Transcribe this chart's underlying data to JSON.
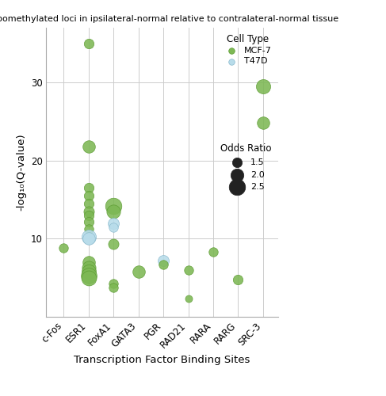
{
  "title": "Hypomethylated loci in ipsilateral-normal relative to contralateral-normal tissue",
  "xlabel": "Transcription Factor Binding Sites",
  "ylabel": "-log₁₀(Q-value)",
  "categories": [
    "c-Fos",
    "ESR1",
    "FoxA1",
    "GATA3",
    "PGR",
    "RAD21",
    "RARA",
    "RARG",
    "SRC-3"
  ],
  "mcf7_color": "#7db854",
  "mcf7_edge": "#5a9a30",
  "t47d_color": "#b8dcea",
  "t47d_edge": "#88b8cc",
  "points": [
    {
      "tf": "c-Fos",
      "cell": "MCF-7",
      "neg_log_q": 8.8,
      "odds_ratio": 1.4
    },
    {
      "tf": "ESR1",
      "cell": "MCF-7",
      "neg_log_q": 35.0,
      "odds_ratio": 1.5
    },
    {
      "tf": "ESR1",
      "cell": "MCF-7",
      "neg_log_q": 21.8,
      "odds_ratio": 1.9
    },
    {
      "tf": "ESR1",
      "cell": "MCF-7",
      "neg_log_q": 16.5,
      "odds_ratio": 1.5
    },
    {
      "tf": "ESR1",
      "cell": "MCF-7",
      "neg_log_q": 15.5,
      "odds_ratio": 1.5
    },
    {
      "tf": "ESR1",
      "cell": "MCF-7",
      "neg_log_q": 14.5,
      "odds_ratio": 1.5
    },
    {
      "tf": "ESR1",
      "cell": "MCF-7",
      "neg_log_q": 13.5,
      "odds_ratio": 1.6
    },
    {
      "tf": "ESR1",
      "cell": "MCF-7",
      "neg_log_q": 13.0,
      "odds_ratio": 1.5
    },
    {
      "tf": "ESR1",
      "cell": "MCF-7",
      "neg_log_q": 12.2,
      "odds_ratio": 1.5
    },
    {
      "tf": "ESR1",
      "cell": "MCF-7",
      "neg_log_q": 11.3,
      "odds_ratio": 1.4
    },
    {
      "tf": "ESR1",
      "cell": "T47D",
      "neg_log_q": 10.2,
      "odds_ratio": 2.2
    },
    {
      "tf": "ESR1",
      "cell": "T47D",
      "neg_log_q": 10.0,
      "odds_ratio": 1.9
    },
    {
      "tf": "ESR1",
      "cell": "MCF-7",
      "neg_log_q": 7.0,
      "odds_ratio": 1.9
    },
    {
      "tf": "ESR1",
      "cell": "MCF-7",
      "neg_log_q": 6.3,
      "odds_ratio": 2.1
    },
    {
      "tf": "ESR1",
      "cell": "MCF-7",
      "neg_log_q": 5.8,
      "odds_ratio": 2.2
    },
    {
      "tf": "ESR1",
      "cell": "MCF-7",
      "neg_log_q": 5.3,
      "odds_ratio": 2.4
    },
    {
      "tf": "ESR1",
      "cell": "MCF-7",
      "neg_log_q": 5.0,
      "odds_ratio": 2.3
    },
    {
      "tf": "FoxA1",
      "cell": "MCF-7",
      "neg_log_q": 14.2,
      "odds_ratio": 2.5
    },
    {
      "tf": "FoxA1",
      "cell": "MCF-7",
      "neg_log_q": 13.5,
      "odds_ratio": 2.1
    },
    {
      "tf": "FoxA1",
      "cell": "T47D",
      "neg_log_q": 12.0,
      "odds_ratio": 1.7
    },
    {
      "tf": "FoxA1",
      "cell": "T47D",
      "neg_log_q": 11.5,
      "odds_ratio": 1.4
    },
    {
      "tf": "FoxA1",
      "cell": "MCF-7",
      "neg_log_q": 9.3,
      "odds_ratio": 1.6
    },
    {
      "tf": "FoxA1",
      "cell": "MCF-7",
      "neg_log_q": 4.3,
      "odds_ratio": 1.4
    },
    {
      "tf": "FoxA1",
      "cell": "MCF-7",
      "neg_log_q": 3.8,
      "odds_ratio": 1.4
    },
    {
      "tf": "GATA3",
      "cell": "MCF-7",
      "neg_log_q": 5.8,
      "odds_ratio": 1.9
    },
    {
      "tf": "PGR",
      "cell": "T47D",
      "neg_log_q": 7.2,
      "odds_ratio": 1.7
    },
    {
      "tf": "PGR",
      "cell": "MCF-7",
      "neg_log_q": 6.7,
      "odds_ratio": 1.4
    },
    {
      "tf": "RAD21",
      "cell": "MCF-7",
      "neg_log_q": 6.0,
      "odds_ratio": 1.4
    },
    {
      "tf": "RAD21",
      "cell": "MCF-7",
      "neg_log_q": 2.3,
      "odds_ratio": 1.1
    },
    {
      "tf": "RARA",
      "cell": "MCF-7",
      "neg_log_q": 8.3,
      "odds_ratio": 1.4
    },
    {
      "tf": "RARG",
      "cell": "MCF-7",
      "neg_log_q": 4.8,
      "odds_ratio": 1.5
    },
    {
      "tf": "SRC-3",
      "cell": "MCF-7",
      "neg_log_q": 29.5,
      "odds_ratio": 2.2
    },
    {
      "tf": "SRC-3",
      "cell": "MCF-7",
      "neg_log_q": 24.8,
      "odds_ratio": 1.9
    }
  ],
  "ylim": [
    0,
    37
  ],
  "yticks": [
    10,
    20,
    30
  ],
  "odds_ratio_scale": 35,
  "legend_odds_ratios": [
    1.5,
    2.0,
    2.5
  ],
  "bg_color": "#ffffff",
  "grid_color": "#cccccc"
}
